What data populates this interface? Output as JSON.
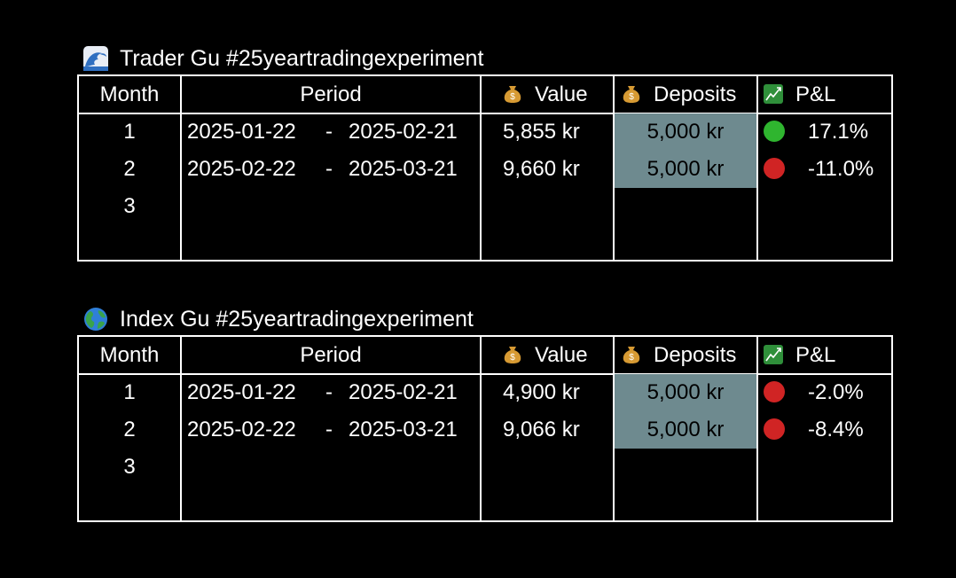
{
  "colors": {
    "background": "#000000",
    "text": "#ffffff",
    "deposit_fill": "#6e8a8f",
    "green_dot": "#2fb52f",
    "red_dot": "#d02424"
  },
  "tables": [
    {
      "title": "Trader Gu #25yeartradingexperiment",
      "title_icon": "wave-icon",
      "headers": {
        "month": "Month",
        "period": "Period",
        "value": "Value",
        "deposits": "Deposits",
        "pnl": "P&L"
      },
      "rows": [
        {
          "month": "1",
          "start": "2025-01-22",
          "sep": "-",
          "end": "2025-02-21",
          "value": "5,855 kr",
          "deposit": "5,000 kr",
          "status": "green",
          "pnl": "17.1%"
        },
        {
          "month": "2",
          "start": "2025-02-22",
          "sep": "-",
          "end": "2025-03-21",
          "value": "9,660 kr",
          "deposit": "5,000 kr",
          "status": "red",
          "pnl": "-11.0%"
        },
        {
          "month": "3"
        }
      ]
    },
    {
      "title": "Index Gu #25yeartradingexperiment",
      "title_icon": "globe-icon",
      "headers": {
        "month": "Month",
        "period": "Period",
        "value": "Value",
        "deposits": "Deposits",
        "pnl": "P&L"
      },
      "rows": [
        {
          "month": "1",
          "start": "2025-01-22",
          "sep": "-",
          "end": "2025-02-21",
          "value": "4,900 kr",
          "deposit": "5,000 kr",
          "status": "red",
          "pnl": "-2.0%"
        },
        {
          "month": "2",
          "start": "2025-02-22",
          "sep": "-",
          "end": "2025-03-21",
          "value": "9,066 kr",
          "deposit": "5,000 kr",
          "status": "red",
          "pnl": "-8.4%"
        },
        {
          "month": "3"
        }
      ]
    }
  ]
}
